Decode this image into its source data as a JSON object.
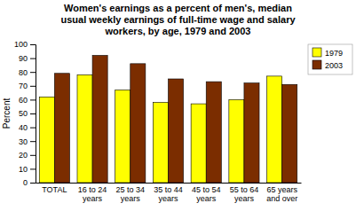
{
  "chart_data": {
    "type": "bar",
    "title": "Women's earnings as a percent of men's, median\nusual weekly earnings of full-time wage and salary\nworkers, by age, 1979 and 2003",
    "ylabel": "Percent",
    "categories": [
      "TOTAL",
      "16 to 24\nyears",
      "25 to 34\nyears",
      "35 to 44\nyears",
      "45 to 54\nyears",
      "55 to 64\nyears",
      "65 years\nand over"
    ],
    "series": [
      {
        "name": "1979",
        "color": "#FFFF00",
        "values": [
          62,
          78,
          67,
          58,
          57,
          60,
          77
        ]
      },
      {
        "name": "2003",
        "color": "#7B2D00",
        "values": [
          79,
          92,
          86,
          75,
          73,
          72,
          71
        ]
      }
    ],
    "ylim": [
      0,
      100
    ],
    "yticks": [
      0,
      10,
      20,
      30,
      40,
      50,
      60,
      70,
      80,
      90,
      100
    ],
    "legend": "upper right",
    "grid": false
  }
}
